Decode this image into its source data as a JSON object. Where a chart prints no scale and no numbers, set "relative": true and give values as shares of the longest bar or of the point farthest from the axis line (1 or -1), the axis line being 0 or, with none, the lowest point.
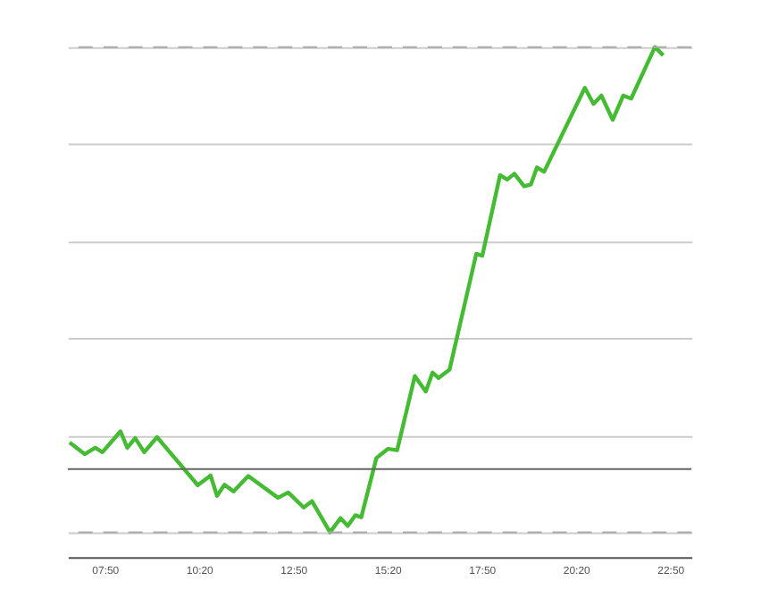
{
  "chart_data": {
    "type": "line",
    "relative": true,
    "grid": "y",
    "marker": "none",
    "line_style": "solid",
    "x": [
      6.9,
      7.3,
      7.58,
      7.77,
      8.25,
      8.43,
      8.64,
      8.88,
      9.22,
      10.3,
      10.64,
      10.81,
      11.01,
      11.25,
      11.64,
      12.43,
      12.7,
      13.11,
      13.33,
      13.81,
      14.09,
      14.28,
      14.48,
      14.64,
      15.04,
      15.35,
      15.59,
      16.06,
      16.35,
      16.53,
      16.69,
      16.98,
      17.69,
      17.85,
      18.32,
      18.51,
      18.7,
      18.96,
      19.14,
      19.3,
      19.49,
      20.57,
      20.8,
      21.01,
      21.31,
      21.59,
      21.8,
      22.43,
      22.65
    ],
    "series": [
      {
        "color": "#44bb33",
        "values": [
          0.185,
          0.161,
          0.174,
          0.165,
          0.208,
          0.174,
          0.194,
          0.165,
          0.196,
          0.097,
          0.117,
          0.075,
          0.098,
          0.084,
          0.116,
          0.071,
          0.082,
          0.051,
          0.064,
          0,
          0.029,
          0.013,
          0.035,
          0.031,
          0.153,
          0.172,
          0.169,
          0.322,
          0.29,
          0.329,
          0.318,
          0.335,
          0.574,
          0.57,
          0.736,
          0.727,
          0.739,
          0.713,
          0.717,
          0.752,
          0.743,
          0.916,
          0.883,
          0.9,
          0.85,
          0.9,
          0.894,
          1,
          0.983
        ]
      }
    ],
    "xlim": [
      6.85,
      23.4
    ],
    "xticks": [
      {
        "value": 7.833,
        "label": "07:50"
      },
      {
        "value": 10.333,
        "label": "10:20"
      },
      {
        "value": 12.833,
        "label": "12:50"
      },
      {
        "value": 15.333,
        "label": "15:20"
      },
      {
        "value": 17.833,
        "label": "17:50"
      },
      {
        "value": 20.333,
        "label": "20:20"
      },
      {
        "value": 22.833,
        "label": "22:50"
      }
    ],
    "tick_labels": "x",
    "ref_lines": [
      {
        "axis": "y",
        "value": 1,
        "color": "#aaaaaa",
        "line_style": "dashed"
      },
      {
        "axis": "y",
        "value": 0,
        "color": "#aaaaaa",
        "line_style": "dashed"
      },
      {
        "axis": "y",
        "value": 0.13,
        "color": "#666666",
        "line_style": "solid"
      }
    ]
  }
}
